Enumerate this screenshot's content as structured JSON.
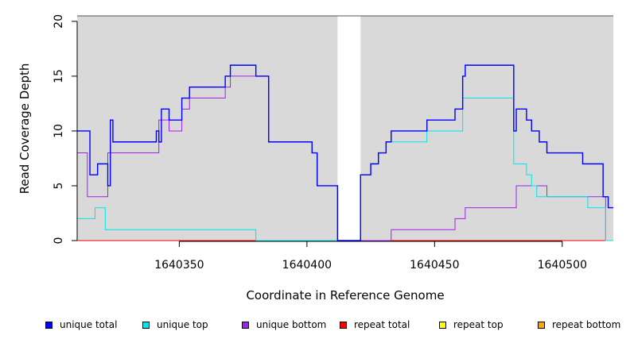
{
  "chart_data": {
    "type": "line",
    "title": "",
    "xlabel": "Coordinate in Reference Genome",
    "ylabel": "Read Coverage Depth",
    "xlim": [
      1640310,
      1640520
    ],
    "ylim": [
      0,
      20.5
    ],
    "x_ticks": [
      1640350,
      1640400,
      1640450,
      1640500
    ],
    "y_ticks": [
      0,
      5,
      10,
      15,
      20
    ],
    "gap": [
      1640412,
      1640421
    ],
    "grid": false,
    "legend_position": "bottom",
    "series": [
      {
        "name": "unique total",
        "color": "#0000ff",
        "points": [
          [
            1640310,
            10
          ],
          [
            1640315,
            10
          ],
          [
            1640315,
            6
          ],
          [
            1640318,
            6
          ],
          [
            1640318,
            7
          ],
          [
            1640322,
            7
          ],
          [
            1640322,
            5
          ],
          [
            1640323,
            5
          ],
          [
            1640323,
            11
          ],
          [
            1640324,
            11
          ],
          [
            1640324,
            9
          ],
          [
            1640341,
            9
          ],
          [
            1640341,
            10
          ],
          [
            1640342,
            10
          ],
          [
            1640342,
            9
          ],
          [
            1640343,
            9
          ],
          [
            1640343,
            12
          ],
          [
            1640346,
            12
          ],
          [
            1640346,
            11
          ],
          [
            1640351,
            11
          ],
          [
            1640351,
            13
          ],
          [
            1640354,
            13
          ],
          [
            1640354,
            14
          ],
          [
            1640368,
            14
          ],
          [
            1640368,
            15
          ],
          [
            1640370,
            15
          ],
          [
            1640370,
            16
          ],
          [
            1640380,
            16
          ],
          [
            1640380,
            15
          ],
          [
            1640385,
            15
          ],
          [
            1640385,
            9
          ],
          [
            1640402,
            9
          ],
          [
            1640402,
            8
          ],
          [
            1640404,
            8
          ],
          [
            1640404,
            5
          ],
          [
            1640412,
            5
          ],
          [
            1640412,
            0
          ],
          [
            1640421,
            0
          ],
          [
            1640421,
            6
          ],
          [
            1640425,
            6
          ],
          [
            1640425,
            7
          ],
          [
            1640428,
            7
          ],
          [
            1640428,
            8
          ],
          [
            1640431,
            8
          ],
          [
            1640431,
            9
          ],
          [
            1640433,
            9
          ],
          [
            1640433,
            10
          ],
          [
            1640447,
            10
          ],
          [
            1640447,
            11
          ],
          [
            1640458,
            11
          ],
          [
            1640458,
            12
          ],
          [
            1640461,
            12
          ],
          [
            1640461,
            15
          ],
          [
            1640462,
            15
          ],
          [
            1640462,
            16
          ],
          [
            1640481,
            16
          ],
          [
            1640481,
            10
          ],
          [
            1640482,
            10
          ],
          [
            1640482,
            12
          ],
          [
            1640486,
            12
          ],
          [
            1640486,
            11
          ],
          [
            1640488,
            11
          ],
          [
            1640488,
            10
          ],
          [
            1640491,
            10
          ],
          [
            1640491,
            9
          ],
          [
            1640494,
            9
          ],
          [
            1640494,
            8
          ],
          [
            1640508,
            8
          ],
          [
            1640508,
            7
          ],
          [
            1640516,
            7
          ],
          [
            1640516,
            4
          ],
          [
            1640518,
            4
          ],
          [
            1640518,
            3
          ],
          [
            1640520,
            3
          ]
        ]
      },
      {
        "name": "unique top",
        "color": "#00e5e5",
        "points": [
          [
            1640310,
            2
          ],
          [
            1640317,
            2
          ],
          [
            1640317,
            3
          ],
          [
            1640321,
            3
          ],
          [
            1640321,
            1
          ],
          [
            1640380,
            1
          ],
          [
            1640380,
            0
          ],
          [
            1640421,
            0
          ],
          [
            1640421,
            6
          ],
          [
            1640425,
            6
          ],
          [
            1640425,
            7
          ],
          [
            1640428,
            7
          ],
          [
            1640428,
            8
          ],
          [
            1640431,
            8
          ],
          [
            1640431,
            9
          ],
          [
            1640447,
            9
          ],
          [
            1640447,
            10
          ],
          [
            1640461,
            10
          ],
          [
            1640461,
            13
          ],
          [
            1640481,
            13
          ],
          [
            1640481,
            7
          ],
          [
            1640486,
            7
          ],
          [
            1640486,
            6
          ],
          [
            1640488,
            6
          ],
          [
            1640488,
            5
          ],
          [
            1640490,
            5
          ],
          [
            1640490,
            4
          ],
          [
            1640510,
            4
          ],
          [
            1640510,
            3
          ],
          [
            1640517,
            3
          ],
          [
            1640517,
            0
          ],
          [
            1640520,
            0
          ]
        ]
      },
      {
        "name": "unique bottom",
        "color": "#a020f0",
        "points": [
          [
            1640310,
            8
          ],
          [
            1640314,
            8
          ],
          [
            1640314,
            4
          ],
          [
            1640322,
            4
          ],
          [
            1640322,
            8
          ],
          [
            1640342,
            8
          ],
          [
            1640342,
            11
          ],
          [
            1640346,
            11
          ],
          [
            1640346,
            10
          ],
          [
            1640351,
            10
          ],
          [
            1640351,
            12
          ],
          [
            1640354,
            12
          ],
          [
            1640354,
            13
          ],
          [
            1640368,
            13
          ],
          [
            1640368,
            14
          ],
          [
            1640370,
            14
          ],
          [
            1640370,
            15
          ],
          [
            1640385,
            15
          ],
          [
            1640385,
            9
          ],
          [
            1640402,
            9
          ],
          [
            1640402,
            8
          ],
          [
            1640404,
            8
          ],
          [
            1640404,
            5
          ],
          [
            1640412,
            5
          ],
          [
            1640412,
            0
          ],
          [
            1640433,
            0
          ],
          [
            1640433,
            1
          ],
          [
            1640458,
            1
          ],
          [
            1640458,
            2
          ],
          [
            1640462,
            2
          ],
          [
            1640462,
            3
          ],
          [
            1640482,
            3
          ],
          [
            1640482,
            5
          ],
          [
            1640494,
            5
          ],
          [
            1640494,
            4
          ],
          [
            1640517,
            4
          ],
          [
            1640517,
            0
          ],
          [
            1640520,
            0
          ]
        ]
      },
      {
        "name": "repeat total",
        "color": "#ff0000",
        "points": [
          [
            1640310,
            0
          ],
          [
            1640520,
            0
          ]
        ]
      },
      {
        "name": "repeat top",
        "color": "#ffff00",
        "points": [
          [
            1640310,
            0
          ],
          [
            1640520,
            0
          ]
        ]
      },
      {
        "name": "repeat bottom",
        "color": "#ffa500",
        "points": [
          [
            1640310,
            0
          ],
          [
            1640520,
            0
          ]
        ]
      }
    ]
  }
}
